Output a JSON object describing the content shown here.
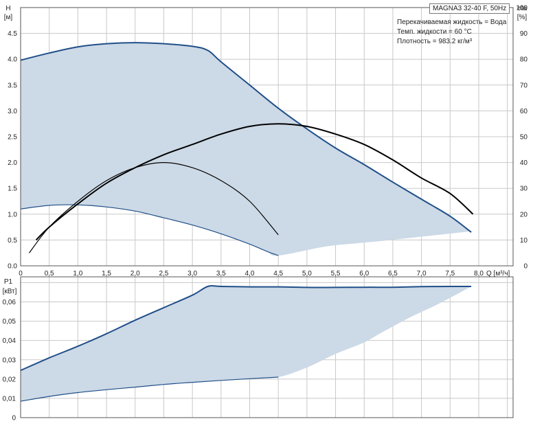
{
  "chart_data": [
    {
      "type": "line",
      "model_label": "MAGNA3 32-40 F, 50Hz",
      "info_lines": [
        "Перекачиваемая жидкость = Вода",
        "Темп. жидкости = 60 °C",
        "Плотность = 983.2 кг/м³"
      ],
      "ylabel_left": [
        "H",
        "[м]"
      ],
      "ylabel_right": [
        "eta",
        "[%]"
      ],
      "xlabel": "Q [м³/ч]",
      "x_ticks": [
        "0",
        "0,5",
        "1,0",
        "1,5",
        "2,0",
        "2,5",
        "3,0",
        "3,5",
        "4,0",
        "4,5",
        "5,0",
        "5,5",
        "6,0",
        "6,5",
        "7,0",
        "7,5",
        "8,0"
      ],
      "y_ticks_left": [
        "0.0",
        "0.5",
        "1.0",
        "1.5",
        "2.0",
        "2.5",
        "3.0",
        "3.5",
        "4.0",
        "4.5"
      ],
      "y_ticks_right": [
        "0",
        "10",
        "20",
        "30",
        "40",
        "50",
        "60",
        "70",
        "80",
        "90",
        "100"
      ],
      "xlim": [
        0,
        8.6
      ],
      "ylim_left": [
        0,
        5.0
      ],
      "ylim_right": [
        0,
        100
      ],
      "colors": {
        "area": "#ccd9e6",
        "max_curve": "#1f4e88",
        "eta_curve": "#000000",
        "grid": "#c8c8c8"
      },
      "area_upper": {
        "x": [
          0,
          0.5,
          1.0,
          1.5,
          2.0,
          2.5,
          3.0,
          3.27,
          3.5,
          4.0,
          4.5,
          5.0,
          5.5,
          6.0,
          6.5,
          7.0,
          7.5,
          7.87
        ],
        "y": [
          3.98,
          4.12,
          4.24,
          4.3,
          4.32,
          4.3,
          4.25,
          4.17,
          3.95,
          3.5,
          3.05,
          2.65,
          2.28,
          1.96,
          1.62,
          1.29,
          0.96,
          0.65
        ]
      },
      "area_lower": {
        "x": [
          7.87,
          7.3,
          6.8,
          6.3,
          5.8,
          5.3,
          4.5,
          4.3,
          4.0,
          3.5,
          3.0,
          2.5,
          2.0,
          1.5,
          1.0,
          0.5,
          0
        ],
        "y": [
          0.67,
          0.6,
          0.54,
          0.48,
          0.43,
          0.37,
          0.2,
          0.28,
          0.42,
          0.62,
          0.79,
          0.93,
          1.06,
          1.14,
          1.18,
          1.17,
          1.1
        ]
      },
      "series": [
        {
          "axis": "right",
          "kind": "eta_max",
          "x": [
            0.27,
            0.5,
            1.0,
            1.5,
            2.0,
            2.5,
            3.0,
            3.5,
            4.0,
            4.5,
            5.0,
            5.5,
            6.0,
            6.5,
            7.0,
            7.5,
            7.9
          ],
          "y": [
            10,
            15,
            24,
            32,
            38,
            43,
            47,
            51,
            54,
            55,
            54,
            51,
            47,
            41,
            34,
            28,
            20
          ]
        },
        {
          "axis": "right",
          "kind": "eta_min",
          "x": [
            0.15,
            0.5,
            1.0,
            1.5,
            2.0,
            2.5,
            3.0,
            3.5,
            4.0,
            4.5
          ],
          "y": [
            5,
            15,
            25,
            33,
            38,
            40,
            38,
            33,
            25,
            12
          ]
        }
      ]
    },
    {
      "type": "line",
      "ylabel": [
        "P1",
        "[кВт]"
      ],
      "y_ticks": [
        "0",
        "0,01",
        "0,02",
        "0,03",
        "0,04",
        "0,05",
        "0,06"
      ],
      "xlim": [
        0,
        8.6
      ],
      "ylim": [
        0,
        0.073
      ],
      "area_upper": {
        "x": [
          0,
          0.5,
          1.0,
          1.5,
          2.0,
          2.5,
          3.0,
          3.27,
          3.5,
          4.0,
          4.5,
          5.0,
          5.5,
          6.0,
          6.5,
          7.0,
          7.5,
          7.87
        ],
        "y": [
          0.0245,
          0.031,
          0.037,
          0.0435,
          0.0505,
          0.057,
          0.0635,
          0.068,
          0.068,
          0.0678,
          0.0678,
          0.0675,
          0.0675,
          0.0676,
          0.0676,
          0.0679,
          0.068,
          0.068
        ]
      },
      "area_lower": {
        "x": [
          7.87,
          7.3,
          6.8,
          6.3,
          6.0,
          5.5,
          5.0,
          4.5,
          4.0,
          3.5,
          3.0,
          2.5,
          2.0,
          1.5,
          1.0,
          0.5,
          0
        ],
        "y": [
          0.068,
          0.059,
          0.052,
          0.044,
          0.039,
          0.033,
          0.026,
          0.021,
          0.0202,
          0.0193,
          0.0183,
          0.0172,
          0.0158,
          0.0145,
          0.013,
          0.011,
          0.0085
        ]
      }
    }
  ]
}
